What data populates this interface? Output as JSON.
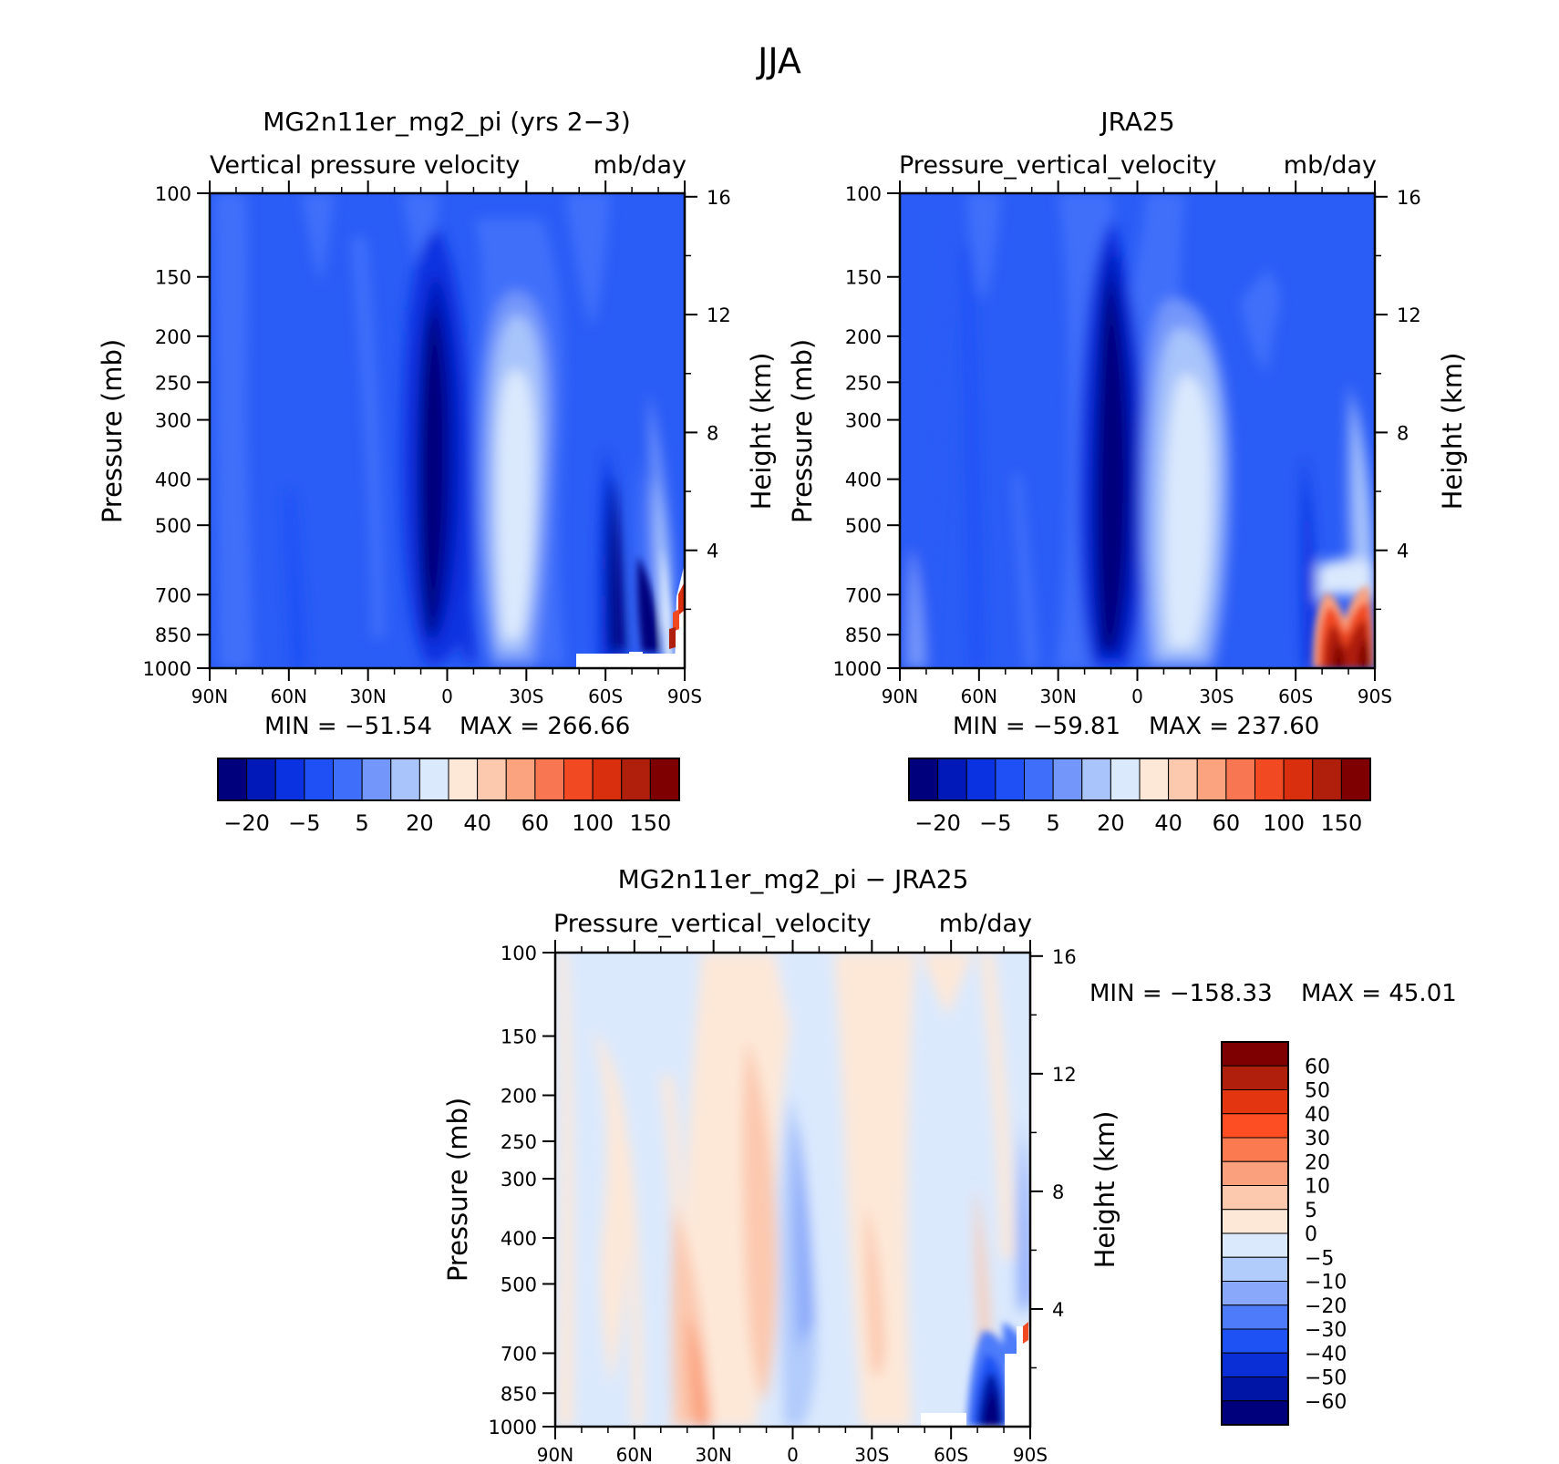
{
  "figure": {
    "title": "JJA"
  },
  "colorbar_shared": {
    "labels": [
      "−20",
      "−5",
      "5",
      "20",
      "40",
      "60",
      "100",
      "150"
    ],
    "colors": [
      "#00007c",
      "#0019b8",
      "#0a32e0",
      "#1e50f5",
      "#3f6ffa",
      "#7396fa",
      "#a8c4fb",
      "#dbe9fd",
      "#fde8d8",
      "#fcc8ae",
      "#fba27e",
      "#f87652",
      "#f14a22",
      "#d92f0f",
      "#af1f0c",
      "#7e0000"
    ]
  },
  "colorbar_diff": {
    "labels": [
      "60",
      "50",
      "40",
      "30",
      "20",
      "10",
      "5",
      "0",
      "−5",
      "−10",
      "−20",
      "−30",
      "−40",
      "−50",
      "−60"
    ],
    "colors": [
      "#7e0000",
      "#b01e0c",
      "#e23510",
      "#fd4e23",
      "#fb7a4f",
      "#fba07c",
      "#fcc8ae",
      "#fde8d8",
      "#dbe9fd",
      "#b1cbfb",
      "#8aa8fa",
      "#4d7bfa",
      "#1f52f4",
      "#0a2fd6",
      "#0014a6",
      "#00007c"
    ]
  },
  "chart_data": [
    {
      "type": "heatmap",
      "title": "MG2n11er_mg2_pi (yrs 2−3)",
      "subtitle_left": "Vertical pressure velocity",
      "subtitle_right": "mb/day",
      "ylabel": "Pressure (mb)",
      "ylabel_right": "Height (km)",
      "x_ticks": [
        "90N",
        "60N",
        "30N",
        "0",
        "30S",
        "60S",
        "90S"
      ],
      "y_ticks": [
        "100",
        "150",
        "200",
        "250",
        "300",
        "400",
        "500",
        "700",
        "850",
        "1000"
      ],
      "y_ticks_right": [
        "16",
        "12",
        "8",
        "4"
      ],
      "min_text": "MIN = −51.54",
      "max_text": "MAX = 266.66",
      "xlim": [
        90,
        -90
      ],
      "ylim": [
        1000,
        100
      ],
      "y_scale": "log"
    },
    {
      "type": "heatmap",
      "title": "JRA25",
      "subtitle_left": "Pressure_vertical_velocity",
      "subtitle_right": "mb/day",
      "ylabel": "Pressure (mb)",
      "ylabel_right": "Height (km)",
      "x_ticks": [
        "90N",
        "60N",
        "30N",
        "0",
        "30S",
        "60S",
        "90S"
      ],
      "y_ticks": [
        "100",
        "150",
        "200",
        "250",
        "300",
        "400",
        "500",
        "700",
        "850",
        "1000"
      ],
      "y_ticks_right": [
        "16",
        "12",
        "8",
        "4"
      ],
      "min_text": "MIN = −59.81",
      "max_text": "MAX = 237.60",
      "xlim": [
        90,
        -90
      ],
      "ylim": [
        1000,
        100
      ],
      "y_scale": "log"
    },
    {
      "type": "heatmap",
      "title": "MG2n11er_mg2_pi − JRA25",
      "subtitle_left": "Pressure_vertical_velocity",
      "subtitle_right": "mb/day",
      "ylabel": "Pressure (mb)",
      "ylabel_right": "Height (km)",
      "x_ticks": [
        "90N",
        "60N",
        "30N",
        "0",
        "30S",
        "60S",
        "90S"
      ],
      "y_ticks": [
        "100",
        "150",
        "200",
        "250",
        "300",
        "400",
        "500",
        "700",
        "850",
        "1000"
      ],
      "y_ticks_right": [
        "16",
        "12",
        "8",
        "4"
      ],
      "min_text": "MIN = −158.33",
      "max_text": "MAX =  45.01",
      "xlim": [
        90,
        -90
      ],
      "ylim": [
        1000,
        100
      ],
      "y_scale": "log"
    }
  ]
}
